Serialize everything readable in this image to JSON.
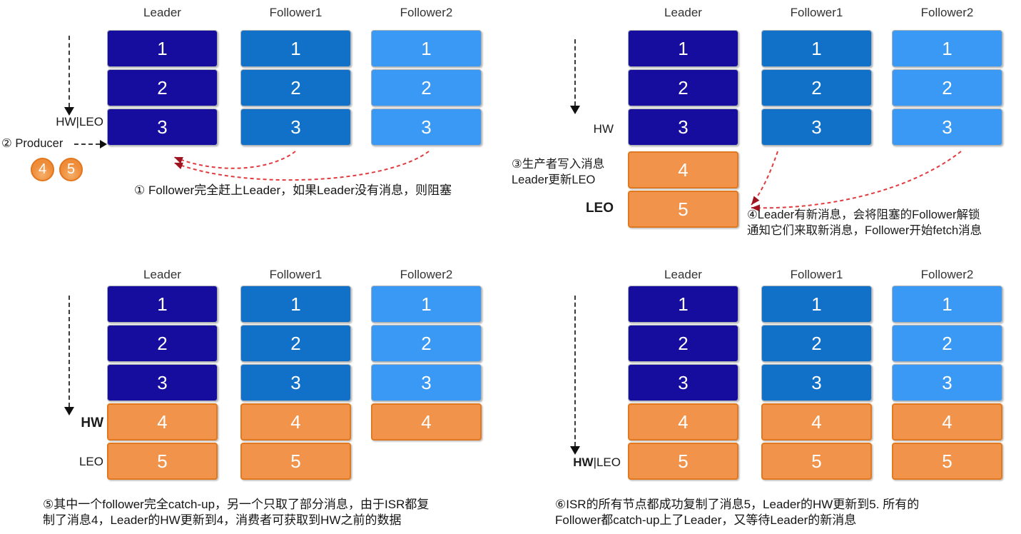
{
  "palette": {
    "leader_navy": "#160c9e",
    "follower1_blue": "#1171c9",
    "follower2_blue": "#3a99f4",
    "orange": "#f2934b",
    "orange_border": "#e0791f",
    "arrow_red": "#e23b3f",
    "arrowhead_red": "#9e1420",
    "text_dark": "#1b1b1b"
  },
  "panels": [
    {
      "columns": [
        {
          "header": "Leader",
          "blocks": [
            {
              "label": "1",
              "color": "leader_navy"
            },
            {
              "label": "2",
              "color": "leader_navy"
            },
            {
              "label": "3",
              "color": "leader_navy"
            }
          ]
        },
        {
          "header": "Follower1",
          "blocks": [
            {
              "label": "1",
              "color": "follower1_blue"
            },
            {
              "label": "2",
              "color": "follower1_blue"
            },
            {
              "label": "3",
              "color": "follower1_blue"
            }
          ]
        },
        {
          "header": "Follower2",
          "blocks": [
            {
              "label": "1",
              "color": "follower2_blue"
            },
            {
              "label": "2",
              "color": "follower2_blue"
            },
            {
              "label": "3",
              "color": "follower2_blue"
            }
          ]
        }
      ],
      "labels": {
        "offset_marker": "HW|LEO",
        "producer": "② Producer",
        "producer_messages": [
          "4",
          "5"
        ]
      },
      "caption_lines": [
        "① Follower完全赶上Leader，如果Leader没有消息，则阻塞"
      ]
    },
    {
      "columns": [
        {
          "header": "Leader",
          "blocks": [
            {
              "label": "1",
              "color": "leader_navy"
            },
            {
              "label": "2",
              "color": "leader_navy"
            },
            {
              "label": "3",
              "color": "leader_navy"
            },
            {
              "label": "4",
              "color": "orange"
            },
            {
              "label": "5",
              "color": "orange"
            }
          ]
        },
        {
          "header": "Follower1",
          "blocks": [
            {
              "label": "1",
              "color": "follower1_blue"
            },
            {
              "label": "2",
              "color": "follower1_blue"
            },
            {
              "label": "3",
              "color": "follower1_blue"
            }
          ]
        },
        {
          "header": "Follower2",
          "blocks": [
            {
              "label": "1",
              "color": "follower2_blue"
            },
            {
              "label": "2",
              "color": "follower2_blue"
            },
            {
              "label": "3",
              "color": "follower2_blue"
            }
          ]
        }
      ],
      "labels": {
        "hw": "HW",
        "leo": "LEO",
        "note_left_lines": [
          "③生产者写入消息",
          "Leader更新LEO"
        ],
        "note_right_lines": [
          "④Leader有新消息，会将阻塞的Follower解锁",
          "通知它们来取新消息，Follower开始fetch消息"
        ]
      },
      "caption_lines": []
    },
    {
      "columns": [
        {
          "header": "Leader",
          "blocks": [
            {
              "label": "1",
              "color": "leader_navy"
            },
            {
              "label": "2",
              "color": "leader_navy"
            },
            {
              "label": "3",
              "color": "leader_navy"
            },
            {
              "label": "4",
              "color": "orange"
            },
            {
              "label": "5",
              "color": "orange"
            }
          ]
        },
        {
          "header": "Follower1",
          "blocks": [
            {
              "label": "1",
              "color": "follower1_blue"
            },
            {
              "label": "2",
              "color": "follower1_blue"
            },
            {
              "label": "3",
              "color": "follower1_blue"
            },
            {
              "label": "4",
              "color": "orange"
            },
            {
              "label": "5",
              "color": "orange"
            }
          ]
        },
        {
          "header": "Follower2",
          "blocks": [
            {
              "label": "1",
              "color": "follower2_blue"
            },
            {
              "label": "2",
              "color": "follower2_blue"
            },
            {
              "label": "3",
              "color": "follower2_blue"
            },
            {
              "label": "4",
              "color": "orange"
            }
          ]
        }
      ],
      "labels": {
        "hw": "HW",
        "leo": "LEO"
      },
      "caption_lines": [
        "⑤其中一个follower完全catch-up，另一个只取了部分消息，由于ISR都复",
        "制了消息4，Leader的HW更新到4，消费者可获取到HW之前的数据"
      ]
    },
    {
      "columns": [
        {
          "header": "Leader",
          "blocks": [
            {
              "label": "1",
              "color": "leader_navy"
            },
            {
              "label": "2",
              "color": "leader_navy"
            },
            {
              "label": "3",
              "color": "leader_navy"
            },
            {
              "label": "4",
              "color": "orange"
            },
            {
              "label": "5",
              "color": "orange"
            }
          ]
        },
        {
          "header": "Follower1",
          "blocks": [
            {
              "label": "1",
              "color": "follower1_blue"
            },
            {
              "label": "2",
              "color": "follower1_blue"
            },
            {
              "label": "3",
              "color": "follower1_blue"
            },
            {
              "label": "4",
              "color": "orange"
            },
            {
              "label": "5",
              "color": "orange"
            }
          ]
        },
        {
          "header": "Follower2",
          "blocks": [
            {
              "label": "1",
              "color": "follower2_blue"
            },
            {
              "label": "2",
              "color": "follower2_blue"
            },
            {
              "label": "3",
              "color": "follower2_blue"
            },
            {
              "label": "4",
              "color": "orange"
            },
            {
              "label": "5",
              "color": "orange"
            }
          ]
        }
      ],
      "labels": {
        "hw_bold": "HW",
        "hw_rest": "|LEO"
      },
      "caption_lines": [
        "⑥ISR的所有节点都成功复制了消息5，Leader的HW更新到5. 所有的",
        "Follower都catch-up上了Leader，又等待Leader的新消息"
      ]
    }
  ]
}
